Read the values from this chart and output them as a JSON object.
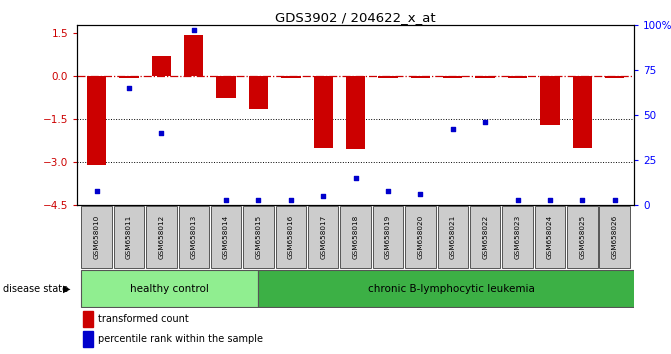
{
  "title": "GDS3902 / 204622_x_at",
  "samples": [
    "GSM658010",
    "GSM658011",
    "GSM658012",
    "GSM658013",
    "GSM658014",
    "GSM658015",
    "GSM658016",
    "GSM658017",
    "GSM658018",
    "GSM658019",
    "GSM658020",
    "GSM658021",
    "GSM658022",
    "GSM658023",
    "GSM658024",
    "GSM658025",
    "GSM658026"
  ],
  "bar_values": [
    -3.1,
    -0.05,
    0.7,
    1.45,
    -0.75,
    -1.15,
    -0.05,
    -2.5,
    -2.55,
    -0.05,
    -0.05,
    -0.05,
    -0.05,
    -0.05,
    -1.7,
    -2.5,
    -0.05
  ],
  "percentile_values": [
    8,
    65,
    40,
    97,
    3,
    3,
    3,
    5,
    15,
    8,
    6,
    42,
    46,
    3,
    3,
    3,
    3
  ],
  "ylim_left": [
    -4.5,
    1.8
  ],
  "ylim_right": [
    0,
    100
  ],
  "right_ticks": [
    0,
    25,
    50,
    75,
    100
  ],
  "right_tick_labels": [
    "0",
    "25",
    "50",
    "75",
    "100%"
  ],
  "left_ticks": [
    -4.5,
    -3.0,
    -1.5,
    0,
    1.5
  ],
  "bar_color": "#cc0000",
  "dot_color": "#0000cc",
  "group1_label": "healthy control",
  "group2_label": "chronic B-lymphocytic leukemia",
  "group1_count": 5,
  "group2_count": 12,
  "disease_state_label": "disease state",
  "legend1_label": "transformed count",
  "legend2_label": "percentile rank within the sample",
  "group1_color": "#90ee90",
  "group2_color": "#3cb045",
  "bg_color": "#ffffff"
}
